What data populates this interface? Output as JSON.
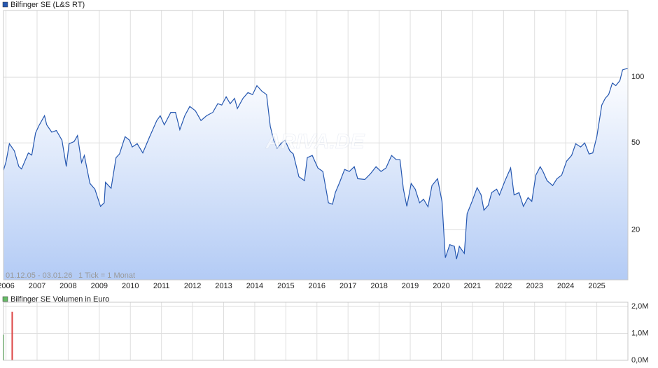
{
  "chart_data": [
    {
      "type": "area",
      "log_scale": true,
      "grid": true,
      "series": [
        {
          "name": "Bilfinger SE (L&S RT)",
          "color": "#2557b0",
          "values": [
            37.5,
            41,
            49.6,
            46,
            39,
            38,
            45,
            44,
            55.5,
            60,
            66.6,
            60.5,
            56,
            57,
            51.5,
            39,
            49.6,
            50.7,
            54,
            40.7,
            43.8,
            32.6,
            30.7,
            25.6,
            26.6,
            33,
            31,
            42.8,
            44.5,
            53.4,
            51.5,
            47.9,
            49.6,
            45,
            53.4,
            63.3,
            66.6,
            60.5,
            69,
            69,
            57.5,
            66.6,
            73.4,
            70.2,
            63.3,
            66.6,
            69,
            75.6,
            74.5,
            81.3,
            75.6,
            80,
            71.8,
            80,
            85,
            83.2,
            91.5,
            86.3,
            83.2,
            59.6,
            51.5,
            47.2,
            49.6,
            51.5,
            46,
            44.5,
            35,
            33.6,
            42.8,
            43.8,
            38.4,
            37,
            26.6,
            26.2,
            29.6,
            33,
            37.8,
            37,
            38.9,
            34.3,
            34,
            36.1,
            38.9,
            37,
            38.4,
            43.8,
            41.9,
            41.9,
            30.7,
            25.6,
            32.6,
            30.7,
            26.6,
            27.6,
            25.5,
            31.9,
            34.3,
            27,
            14.9,
            17.1,
            16.8,
            14.7,
            16.8,
            15.6,
            23.7,
            27,
            31.2,
            28.9,
            24.6,
            25.9,
            29.6,
            30.7,
            28.9,
            33.6,
            38.4,
            28.9,
            29.6,
            25.6,
            28.1,
            27,
            35.6,
            38.9,
            37,
            33.6,
            31.9,
            34.3,
            35.6,
            41.3,
            43.8,
            49.6,
            47.9,
            50,
            44.5,
            45,
            53.4,
            74.5,
            80,
            83.2,
            94,
            91.5,
            96.4,
            108,
            110
          ]
        }
      ],
      "x": [
        2005.92,
        2006.0,
        2006.11,
        2006.27,
        2006.41,
        2006.5,
        2006.72,
        2006.83,
        2006.95,
        2007.06,
        2007.24,
        2007.31,
        2007.47,
        2007.62,
        2007.8,
        2007.94,
        2008.03,
        2008.19,
        2008.3,
        2008.43,
        2008.52,
        2008.7,
        2008.86,
        2009.04,
        2009.16,
        2009.2,
        2009.38,
        2009.54,
        2009.65,
        2009.83,
        2009.97,
        2010.06,
        2010.22,
        2010.4,
        2010.62,
        2010.85,
        2010.96,
        2011.09,
        2011.3,
        2011.45,
        2011.59,
        2011.75,
        2011.91,
        2012.09,
        2012.27,
        2012.45,
        2012.65,
        2012.81,
        2012.94,
        2013.08,
        2013.21,
        2013.35,
        2013.44,
        2013.62,
        2013.78,
        2013.93,
        2014.07,
        2014.23,
        2014.38,
        2014.5,
        2014.61,
        2014.72,
        2014.84,
        2014.97,
        2015.13,
        2015.24,
        2015.42,
        2015.6,
        2015.69,
        2015.85,
        2016.03,
        2016.19,
        2016.37,
        2016.5,
        2016.59,
        2016.73,
        2016.89,
        2017.04,
        2017.2,
        2017.31,
        2017.54,
        2017.72,
        2017.9,
        2018.06,
        2018.22,
        2018.4,
        2018.55,
        2018.67,
        2018.78,
        2018.89,
        2019.03,
        2019.16,
        2019.3,
        2019.43,
        2019.57,
        2019.7,
        2019.88,
        2020.02,
        2020.13,
        2020.27,
        2020.42,
        2020.49,
        2020.58,
        2020.74,
        2020.83,
        2020.99,
        2021.15,
        2021.28,
        2021.37,
        2021.51,
        2021.62,
        2021.78,
        2021.87,
        2022.05,
        2022.23,
        2022.34,
        2022.5,
        2022.64,
        2022.79,
        2022.91,
        2023.04,
        2023.18,
        2023.27,
        2023.4,
        2023.58,
        2023.72,
        2023.87,
        2024.03,
        2024.19,
        2024.32,
        2024.48,
        2024.61,
        2024.75,
        2024.87,
        2025.0,
        2025.16,
        2025.27,
        2025.38,
        2025.5,
        2025.61,
        2025.74,
        2025.83,
        2026.0
      ],
      "xlim": [
        2005.92,
        2026.0
      ],
      "xticks": [
        2006,
        2007,
        2008,
        2009,
        2010,
        2011,
        2012,
        2013,
        2014,
        2015,
        2016,
        2017,
        2018,
        2019,
        2020,
        2021,
        2022,
        2023,
        2024,
        2025
      ],
      "ylim": [
        11.8,
        202
      ],
      "yticks": [
        20,
        50,
        100
      ],
      "annotations": [
        "01.12.05 - 03.01.26",
        "1 Tick = 1 Monat"
      ],
      "watermark": "ARIVA.DE"
    },
    {
      "type": "bar",
      "grid": true,
      "series": [
        {
          "name": "Bilfinger SE Volumen in Euro",
          "color": "#66bb66",
          "colors": [
            "#66bb66",
            "#dd4444"
          ],
          "values": [
            950000,
            1800000
          ]
        }
      ],
      "x": [
        2005.92,
        2006.2
      ],
      "xlim": [
        2005.92,
        2026.0
      ],
      "ylim": [
        0,
        2000000
      ],
      "yticks": [
        {
          "value": 0,
          "label": "0,0M"
        },
        {
          "value": 1000000,
          "label": "1,0M"
        },
        {
          "value": 2000000,
          "label": "2,0M"
        }
      ]
    }
  ]
}
